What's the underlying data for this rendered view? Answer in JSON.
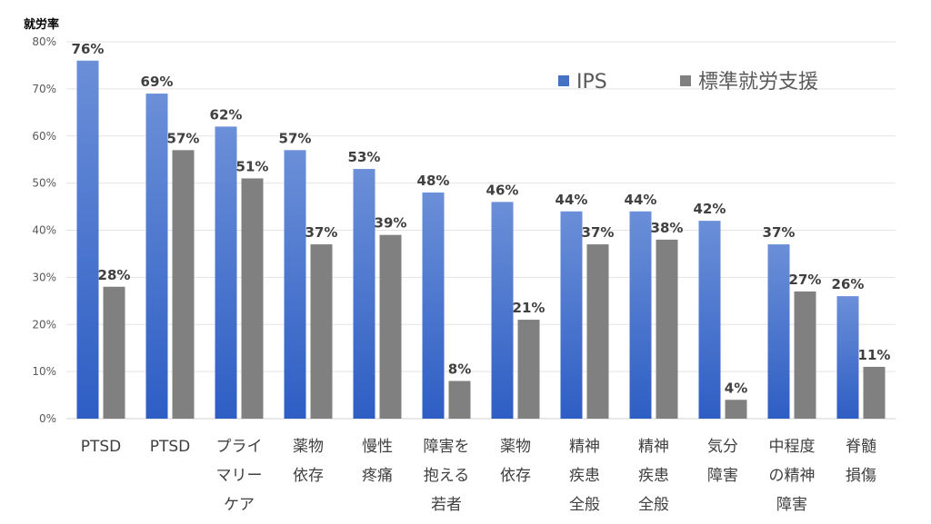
{
  "chart_data": {
    "type": "bar",
    "ylabel": "就労率",
    "ylim": [
      0,
      80
    ],
    "yticks": [
      "0%",
      "10%",
      "20%",
      "30%",
      "40%",
      "50%",
      "60%",
      "70%",
      "80%"
    ],
    "grid": true,
    "legend_position": "top-right",
    "categories": [
      [
        "PTSD"
      ],
      [
        "PTSD"
      ],
      [
        "プライ",
        "マリー",
        "ケア"
      ],
      [
        "薬物",
        "依存"
      ],
      [
        "慢性",
        "疼痛"
      ],
      [
        "障害を",
        "抱える",
        "若者"
      ],
      [
        "薬物",
        "依存"
      ],
      [
        "精神",
        "疾患",
        "全般"
      ],
      [
        "精神",
        "疾患",
        "全般"
      ],
      [
        "気分",
        "障害"
      ],
      [
        "中程度",
        "の精神",
        "障害"
      ],
      [
        "脊髄",
        "損傷"
      ]
    ],
    "series": [
      {
        "name": "IPS",
        "color": "#4472c4",
        "values": [
          76,
          69,
          62,
          57,
          53,
          48,
          46,
          44,
          44,
          42,
          37,
          26
        ]
      },
      {
        "name": "標準就労支援",
        "color": "#808080",
        "values": [
          28,
          57,
          51,
          37,
          39,
          8,
          21,
          37,
          38,
          4,
          27,
          11
        ]
      }
    ],
    "value_format": "%"
  }
}
